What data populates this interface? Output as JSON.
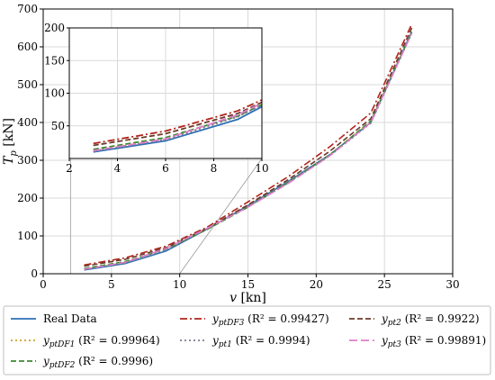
{
  "chart_data": {
    "type": "line",
    "xlabel": "v [kn]",
    "ylabel": "T_p [kN]",
    "xlim": [
      0,
      30
    ],
    "ylim": [
      0,
      700
    ],
    "xticks": [
      "0",
      "5",
      "10",
      "15",
      "20",
      "25",
      "30"
    ],
    "yticks": [
      "0",
      "100",
      "200",
      "300",
      "400",
      "500",
      "600",
      "700"
    ],
    "grid": true,
    "legend_position": "bottom",
    "x": [
      3,
      6,
      9,
      12,
      15,
      18,
      21,
      24,
      27
    ],
    "series": [
      {
        "name": "Real Data",
        "label": "Real Data",
        "color": "#2e6fb5",
        "dash": "solid",
        "values": [
          10,
          27,
          60,
          118,
          180,
          245,
          315,
          400,
          640
        ]
      },
      {
        "name": "y_ptDF1",
        "label_base": "y",
        "label_sub": "ptDF1",
        "r2": "(R² = 0.99964)",
        "color": "#c9a227",
        "dash": "dotted",
        "values": [
          12,
          29,
          64,
          118,
          178,
          243,
          314,
          402,
          636
        ]
      },
      {
        "name": "y_ptDF2",
        "label_base": "y",
        "label_sub": "ptDF2",
        "r2": "(R² = 0.9996)",
        "color": "#3b8a2e",
        "dash": "dashed",
        "values": [
          14,
          32,
          65,
          117,
          176,
          242,
          314,
          404,
          638
        ]
      },
      {
        "name": "y_ptDF3",
        "label_base": "y",
        "label_sub": "ptDF3",
        "r2": "(R² = 0.99427)",
        "color": "#b0241b",
        "dash": "dashdot",
        "values": [
          23,
          42,
          73,
          123,
          190,
          258,
          336,
          425,
          660
        ]
      },
      {
        "name": "y_pt1",
        "label_base": "y",
        "label_sub": "pt1",
        "r2": "(R² = 0.9994)",
        "color": "#7a7a9a",
        "dash": "dotted",
        "values": [
          11,
          29,
          64,
          119,
          177,
          241,
          312,
          398,
          636
        ]
      },
      {
        "name": "y_pt2",
        "label_base": "y",
        "label_sub": "pt2",
        "r2": "(R² = 0.9922)",
        "color": "#6b3a2a",
        "dash": "dashed",
        "values": [
          20,
          38,
          69,
          120,
          182,
          250,
          324,
          410,
          650
        ]
      },
      {
        "name": "y_pt3",
        "label_base": "y",
        "label_sub": "pt3",
        "r2": "(R² = 0.99891)",
        "color": "#e07cc8",
        "dash": "longdash",
        "values": [
          12,
          30,
          67,
          120,
          176,
          240,
          312,
          400,
          636
        ]
      }
    ],
    "inset": {
      "xlim": [
        2,
        10
      ],
      "ylim": [
        0,
        200
      ],
      "xticks": [
        "2",
        "4",
        "6",
        "8",
        "10"
      ],
      "yticks": [
        "50",
        "100",
        "150",
        "200"
      ]
    }
  }
}
